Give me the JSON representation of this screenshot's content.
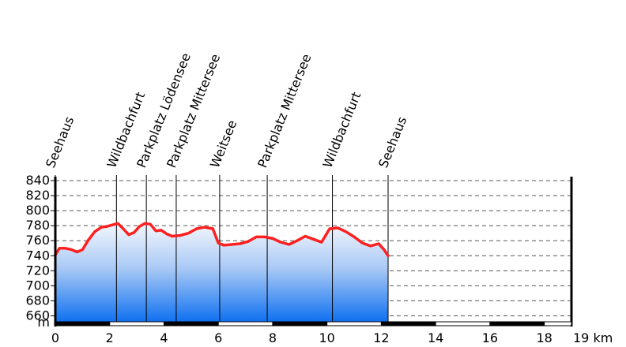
{
  "chart_data": {
    "type": "area",
    "xlabel": "",
    "ylabel": "",
    "x_unit": "km",
    "y_unit": "m",
    "xlim": [
      0,
      19
    ],
    "ylim": [
      650,
      840
    ],
    "x_ticks": [
      "0",
      "2",
      "4",
      "6",
      "8",
      "10",
      "12",
      "14",
      "16",
      "18",
      "19"
    ],
    "y_ticks": [
      "840",
      "820",
      "800",
      "780",
      "760",
      "740",
      "720",
      "700",
      "680",
      "660"
    ],
    "grid": true,
    "series": [
      {
        "x": [
          0,
          0.15,
          0.35,
          0.6,
          0.8,
          1.0,
          1.2,
          1.45,
          1.7,
          1.9,
          2.1,
          2.3,
          2.5,
          2.7,
          2.9,
          3.1,
          3.3,
          3.5,
          3.7,
          3.9,
          4.1,
          4.3,
          4.6,
          4.9,
          5.2,
          5.5,
          5.8,
          6.0,
          6.2,
          6.5,
          6.8,
          7.1,
          7.4,
          7.7,
          8.0,
          8.3,
          8.6,
          8.9,
          9.2,
          9.5,
          9.8,
          10.1,
          10.4,
          10.7,
          11.0,
          11.3,
          11.6,
          11.9,
          12.1,
          12.25
        ],
        "y": [
          741,
          750,
          750,
          748,
          745,
          748,
          760,
          772,
          778,
          779,
          781,
          783,
          776,
          768,
          771,
          779,
          783,
          782,
          773,
          774,
          769,
          766,
          767,
          770,
          776,
          778,
          776,
          757,
          754,
          755,
          756,
          759,
          765,
          765,
          763,
          758,
          755,
          760,
          766,
          762,
          758,
          776,
          777,
          772,
          765,
          757,
          753,
          756,
          748,
          740
        ]
      }
    ],
    "waypoints": [
      {
        "label": "Seehaus",
        "km": 0
      },
      {
        "label": "Wildbachfurt",
        "km": 2.25
      },
      {
        "label": "Parkplatz Lödensee",
        "km": 3.35
      },
      {
        "label": "Parkplatz Mittersee",
        "km": 4.45
      },
      {
        "label": "Weitsee",
        "km": 6.05
      },
      {
        "label": "Parkplatz Mittersee",
        "km": 7.8
      },
      {
        "label": "Wildbachfurt",
        "km": 10.2
      },
      {
        "label": "Seehaus",
        "km": 12.25
      }
    ],
    "colors": {
      "line": "#ff2020",
      "fill_top": "#f4f7fd",
      "fill_bottom": "#0b6ef0",
      "grid": "#555555",
      "axis": "#000000"
    }
  }
}
